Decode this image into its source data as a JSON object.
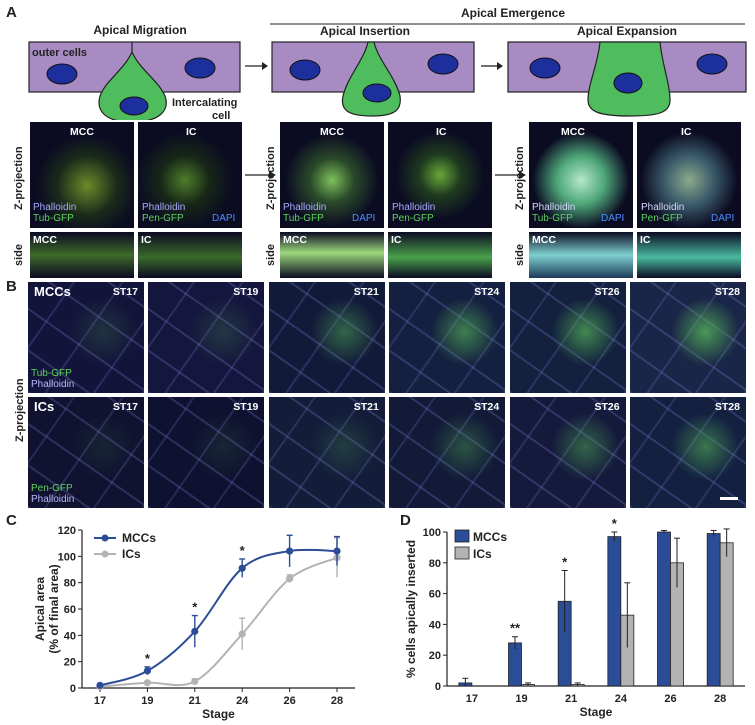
{
  "panel_labels": {
    "a": "A",
    "b": "B",
    "c": "C",
    "d": "D"
  },
  "schematic": {
    "apical_migration": "Apical Migration",
    "apical_emergence": "Apical Emergence",
    "apical_insertion": "Apical Insertion",
    "apical_expansion": "Apical Expansion",
    "outer_cells": "outer cells",
    "intercalating_cell": "Intercalating\ncell"
  },
  "panel_a": {
    "zproj": "Z-projection",
    "side": "side",
    "mcc": "MCC",
    "ic": "IC",
    "phalloidin": "Phalloidin",
    "tub_gfp": "Tub-GFP",
    "pen_gfp": "Pen-GFP",
    "dapi": "DAPI"
  },
  "panel_b": {
    "zproj": "Z-projection",
    "mccs": "MCCs",
    "ics": "ICs",
    "stages": [
      "ST17",
      "ST19",
      "ST21",
      "ST24",
      "ST26",
      "ST28"
    ],
    "tub_gfp": "Tub-GFP",
    "pen_gfp": "Pen-GFP",
    "phalloidin": "Phalloidin"
  },
  "colors": {
    "cell_purple": "#a98bc4",
    "cell_green": "#4fbd5e",
    "nucleus": "#1d2f9c",
    "mcc_blue": "#2b4c96",
    "ic_gray": "#b3b3b3"
  },
  "chart_data": [
    {
      "type": "line",
      "xlabel": "Stage",
      "ylabel": "Apical area\n(% of final area)",
      "categories": [
        "17",
        "19",
        "21",
        "24",
        "26",
        "28"
      ],
      "ylim": [
        0,
        120
      ],
      "yticks": [
        0,
        20,
        40,
        60,
        80,
        100,
        120
      ],
      "legend_position": "top-left",
      "series": [
        {
          "name": "MCCs",
          "values": [
            2,
            13,
            43,
            91,
            104,
            104
          ],
          "errors": [
            1,
            3,
            12,
            7,
            12,
            11
          ],
          "color": "#2b4c96"
        },
        {
          "name": "ICs",
          "values": [
            1,
            4,
            5,
            41,
            83,
            99
          ],
          "errors": [
            1,
            1,
            2,
            12,
            3,
            15
          ],
          "color": "#b3b3b3"
        }
      ],
      "annotations": [
        {
          "x": "19",
          "text": "*"
        },
        {
          "x": "21",
          "text": "*"
        },
        {
          "x": "24",
          "text": "*"
        }
      ]
    },
    {
      "type": "bar",
      "xlabel": "Stage",
      "ylabel": "% cells apically inserted",
      "categories": [
        "17",
        "19",
        "21",
        "24",
        "26",
        "28"
      ],
      "ylim": [
        0,
        100
      ],
      "yticks": [
        0,
        20,
        40,
        60,
        80,
        100
      ],
      "legend_position": "top-left",
      "series": [
        {
          "name": "MCCs",
          "values": [
            2,
            28,
            55,
            97,
            100,
            99
          ],
          "errors": [
            3,
            4,
            20,
            3,
            1,
            2
          ],
          "color": "#2b4c96"
        },
        {
          "name": "ICs",
          "values": [
            0,
            1,
            1,
            46,
            80,
            93
          ],
          "errors": [
            0,
            1,
            1,
            21,
            16,
            9
          ],
          "color": "#b3b3b3"
        }
      ],
      "annotations": [
        {
          "x": "19",
          "text": "**"
        },
        {
          "x": "21",
          "text": "*"
        },
        {
          "x": "24",
          "text": "*"
        }
      ]
    }
  ]
}
